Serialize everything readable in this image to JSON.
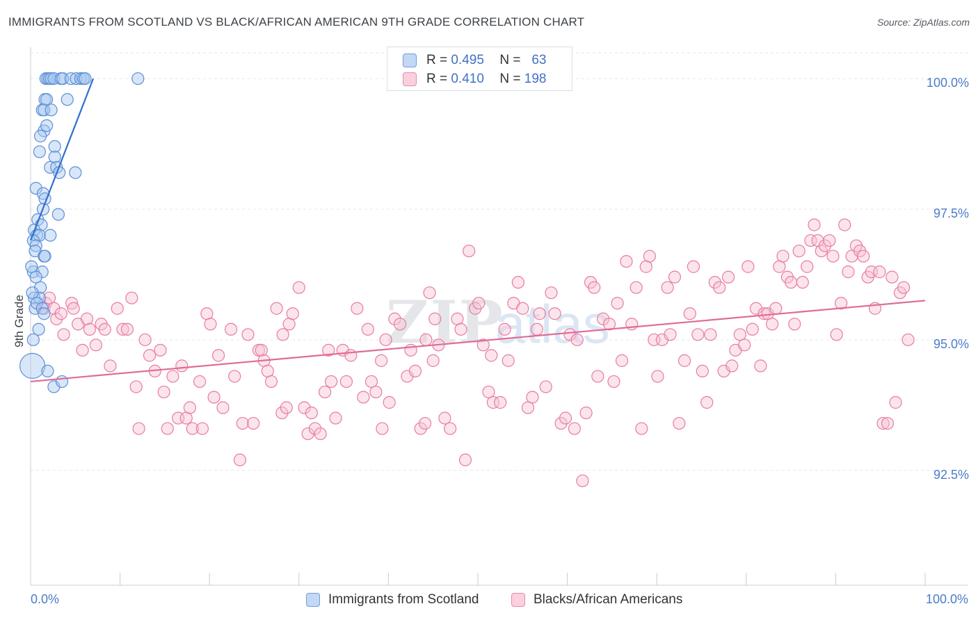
{
  "title": "IMMIGRANTS FROM SCOTLAND VS BLACK/AFRICAN AMERICAN 9TH GRADE CORRELATION CHART",
  "source": "Source: ZipAtlas.com",
  "colors": {
    "blue": "#5b8fd6",
    "blue_fill": "#a9c7ef",
    "pink": "#e77ca0",
    "pink_fill": "#f7c3d4",
    "blue_line": "#2e6fcf",
    "pink_line": "#e06b94",
    "tick_text": "#4a7cc9"
  },
  "legend_top": [
    {
      "r_label": "R =",
      "r_value": "0.495",
      "n_label": "N =",
      "n_value": "63"
    },
    {
      "r_label": "R =",
      "r_value": "0.410",
      "n_label": "N =",
      "n_value": "198"
    }
  ],
  "chart_data": {
    "type": "scatter",
    "title": "IMMIGRANTS FROM SCOTLAND VS BLACK/AFRICAN AMERICAN 9TH GRADE CORRELATION CHART",
    "xlabel": "",
    "ylabel": "9th Grade",
    "xlim": [
      0,
      100
    ],
    "ylim": [
      90.3,
      100.6
    ],
    "x_tick_labels": [
      "0.0%",
      "100.0%"
    ],
    "y_ticks": [
      92.5,
      95.0,
      97.5,
      100.0
    ],
    "y_tick_labels": [
      "92.5%",
      "95.0%",
      "97.5%",
      "100.0%"
    ],
    "grid": true,
    "legend_position": "bottom",
    "series": [
      {
        "name": "Immigrants from Scotland",
        "R": 0.495,
        "N": 63,
        "trend": [
          [
            0.0,
            96.9
          ],
          [
            7.0,
            100.0
          ]
        ],
        "points": [
          [
            1.7,
            100
          ],
          [
            1.9,
            100
          ],
          [
            2.1,
            100
          ],
          [
            2.3,
            100
          ],
          [
            2.6,
            100
          ],
          [
            3.4,
            100
          ],
          [
            3.6,
            100
          ],
          [
            4.5,
            100
          ],
          [
            5.1,
            100
          ],
          [
            5.6,
            100
          ],
          [
            5.9,
            100
          ],
          [
            6.1,
            100
          ],
          [
            12.0,
            100
          ],
          [
            1.6,
            99.6
          ],
          [
            1.8,
            99.6
          ],
          [
            4.1,
            99.6
          ],
          [
            1.3,
            99.4
          ],
          [
            1.5,
            99.4
          ],
          [
            2.3,
            99.4
          ],
          [
            1.5,
            99.0
          ],
          [
            1.8,
            99.1
          ],
          [
            1.1,
            98.9
          ],
          [
            1.0,
            98.6
          ],
          [
            2.7,
            98.7
          ],
          [
            2.7,
            98.5
          ],
          [
            2.2,
            98.3
          ],
          [
            2.9,
            98.3
          ],
          [
            3.2,
            98.2
          ],
          [
            5.0,
            98.2
          ],
          [
            0.6,
            97.9
          ],
          [
            1.4,
            97.8
          ],
          [
            1.6,
            97.7
          ],
          [
            1.4,
            97.5
          ],
          [
            3.1,
            97.4
          ],
          [
            0.8,
            97.3
          ],
          [
            1.2,
            97.2
          ],
          [
            0.4,
            97.1
          ],
          [
            0.7,
            97.0
          ],
          [
            1.0,
            97.0
          ],
          [
            2.2,
            97.0
          ],
          [
            0.3,
            96.9
          ],
          [
            0.6,
            96.8
          ],
          [
            0.5,
            96.7
          ],
          [
            1.5,
            96.6
          ],
          [
            1.6,
            96.6
          ],
          [
            0.3,
            96.3
          ],
          [
            1.3,
            96.3
          ],
          [
            0.6,
            96.2
          ],
          [
            1.1,
            96.0
          ],
          [
            0.4,
            95.8
          ],
          [
            1.0,
            95.8
          ],
          [
            0.5,
            95.6
          ],
          [
            0.7,
            95.7
          ],
          [
            1.3,
            95.6
          ],
          [
            1.5,
            95.5
          ],
          [
            0.2,
            94.5
          ],
          [
            1.9,
            94.4
          ],
          [
            2.6,
            94.1
          ],
          [
            3.5,
            94.2
          ],
          [
            0.3,
            95.0
          ],
          [
            0.9,
            95.2
          ],
          [
            0.1,
            96.4
          ],
          [
            0.2,
            95.9
          ]
        ]
      },
      {
        "name": "Blacks/African Americans",
        "R": 0.41,
        "N": 198,
        "trend": [
          [
            0.0,
            94.2
          ],
          [
            100.0,
            95.75
          ]
        ],
        "points": [
          [
            1.5,
            95.6
          ],
          [
            1.7,
            95.7
          ],
          [
            2.1,
            95.8
          ],
          [
            2.6,
            95.6
          ],
          [
            2.9,
            95.4
          ],
          [
            3.4,
            95.5
          ],
          [
            3.7,
            95.1
          ],
          [
            4.6,
            95.7
          ],
          [
            4.8,
            95.6
          ],
          [
            5.3,
            95.3
          ],
          [
            5.8,
            94.8
          ],
          [
            6.3,
            95.4
          ],
          [
            6.6,
            95.2
          ],
          [
            7.3,
            94.9
          ],
          [
            7.9,
            95.3
          ],
          [
            8.3,
            95.2
          ],
          [
            8.9,
            94.5
          ],
          [
            9.7,
            95.6
          ],
          [
            10.3,
            95.2
          ],
          [
            10.8,
            95.2
          ],
          [
            11.3,
            95.8
          ],
          [
            11.8,
            94.1
          ],
          [
            12.1,
            93.3
          ],
          [
            12.8,
            95.0
          ],
          [
            13.3,
            94.7
          ],
          [
            13.9,
            94.4
          ],
          [
            14.5,
            94.8
          ],
          [
            14.9,
            94.0
          ],
          [
            15.3,
            93.3
          ],
          [
            15.9,
            94.3
          ],
          [
            16.5,
            93.5
          ],
          [
            16.9,
            94.5
          ],
          [
            17.4,
            93.5
          ],
          [
            17.8,
            93.7
          ],
          [
            18.1,
            93.3
          ],
          [
            18.9,
            94.2
          ],
          [
            19.2,
            93.3
          ],
          [
            19.7,
            95.5
          ],
          [
            20.1,
            95.3
          ],
          [
            20.5,
            93.9
          ],
          [
            21.0,
            94.7
          ],
          [
            21.5,
            93.7
          ],
          [
            22.4,
            95.2
          ],
          [
            22.8,
            94.3
          ],
          [
            23.4,
            92.7
          ],
          [
            23.7,
            93.4
          ],
          [
            24.3,
            95.1
          ],
          [
            24.9,
            93.4
          ],
          [
            25.5,
            94.8
          ],
          [
            25.8,
            94.8
          ],
          [
            26.1,
            94.6
          ],
          [
            26.5,
            94.4
          ],
          [
            26.9,
            94.2
          ],
          [
            27.5,
            95.6
          ],
          [
            28.1,
            93.6
          ],
          [
            28.6,
            93.7
          ],
          [
            28.9,
            95.3
          ],
          [
            29.3,
            95.5
          ],
          [
            30.0,
            96.0
          ],
          [
            30.6,
            93.7
          ],
          [
            31.0,
            93.2
          ],
          [
            31.4,
            93.6
          ],
          [
            31.8,
            93.3
          ],
          [
            32.4,
            93.2
          ],
          [
            32.9,
            94.0
          ],
          [
            33.3,
            94.8
          ],
          [
            33.6,
            94.2
          ],
          [
            34.1,
            93.5
          ],
          [
            34.9,
            94.8
          ],
          [
            35.3,
            94.2
          ],
          [
            35.8,
            94.7
          ],
          [
            36.5,
            95.6
          ],
          [
            37.2,
            93.9
          ],
          [
            37.7,
            95.2
          ],
          [
            38.1,
            94.2
          ],
          [
            38.6,
            94.0
          ],
          [
            39.2,
            94.6
          ],
          [
            39.7,
            95.0
          ],
          [
            40.1,
            93.8
          ],
          [
            40.7,
            95.4
          ],
          [
            41.3,
            95.3
          ],
          [
            42.1,
            94.3
          ],
          [
            42.5,
            94.8
          ],
          [
            43.0,
            94.4
          ],
          [
            43.6,
            93.3
          ],
          [
            44.1,
            93.4
          ],
          [
            44.6,
            95.9
          ],
          [
            45.2,
            95.4
          ],
          [
            45.6,
            94.9
          ],
          [
            46.3,
            93.5
          ],
          [
            46.9,
            93.3
          ],
          [
            47.7,
            95.4
          ],
          [
            48.1,
            95.2
          ],
          [
            48.6,
            92.7
          ],
          [
            49.0,
            96.7
          ],
          [
            49.7,
            95.6
          ],
          [
            50.1,
            95.7
          ],
          [
            50.6,
            94.9
          ],
          [
            51.2,
            94.0
          ],
          [
            51.7,
            93.8
          ],
          [
            52.5,
            93.8
          ],
          [
            53.0,
            95.2
          ],
          [
            53.4,
            94.6
          ],
          [
            54.0,
            95.7
          ],
          [
            54.5,
            96.1
          ],
          [
            55.0,
            95.6
          ],
          [
            55.6,
            93.7
          ],
          [
            56.1,
            93.9
          ],
          [
            56.6,
            95.2
          ],
          [
            56.9,
            95.5
          ],
          [
            57.6,
            94.1
          ],
          [
            58.2,
            95.9
          ],
          [
            58.6,
            95.5
          ],
          [
            59.3,
            93.4
          ],
          [
            59.8,
            93.5
          ],
          [
            60.3,
            95.1
          ],
          [
            60.8,
            93.3
          ],
          [
            61.1,
            95.0
          ],
          [
            61.7,
            92.3
          ],
          [
            62.1,
            93.6
          ],
          [
            62.6,
            96.1
          ],
          [
            63.0,
            96.0
          ],
          [
            63.4,
            94.3
          ],
          [
            64.0,
            95.4
          ],
          [
            64.7,
            95.3
          ],
          [
            65.2,
            94.2
          ],
          [
            65.6,
            95.7
          ],
          [
            66.1,
            94.6
          ],
          [
            66.6,
            96.5
          ],
          [
            67.2,
            95.3
          ],
          [
            67.7,
            96.0
          ],
          [
            68.3,
            93.3
          ],
          [
            68.8,
            96.4
          ],
          [
            69.2,
            96.6
          ],
          [
            69.7,
            95.0
          ],
          [
            70.1,
            94.3
          ],
          [
            70.6,
            95.0
          ],
          [
            71.2,
            96.0
          ],
          [
            71.5,
            95.1
          ],
          [
            72.0,
            96.2
          ],
          [
            72.5,
            93.4
          ],
          [
            73.1,
            94.6
          ],
          [
            73.7,
            95.5
          ],
          [
            74.1,
            96.4
          ],
          [
            74.6,
            95.1
          ],
          [
            75.1,
            94.4
          ],
          [
            75.6,
            93.8
          ],
          [
            76.0,
            95.1
          ],
          [
            76.5,
            96.1
          ],
          [
            77.0,
            96.0
          ],
          [
            77.5,
            94.4
          ],
          [
            78.0,
            96.2
          ],
          [
            78.4,
            94.5
          ],
          [
            78.8,
            94.8
          ],
          [
            79.3,
            95.1
          ],
          [
            79.8,
            94.9
          ],
          [
            80.2,
            96.4
          ],
          [
            80.7,
            95.2
          ],
          [
            81.1,
            95.6
          ],
          [
            81.6,
            94.5
          ],
          [
            82.0,
            95.5
          ],
          [
            82.4,
            95.5
          ],
          [
            82.9,
            95.3
          ],
          [
            83.3,
            95.6
          ],
          [
            83.7,
            96.4
          ],
          [
            84.1,
            96.6
          ],
          [
            84.6,
            96.2
          ],
          [
            85.0,
            96.1
          ],
          [
            85.4,
            95.3
          ],
          [
            85.9,
            96.7
          ],
          [
            86.3,
            96.1
          ],
          [
            86.8,
            96.4
          ],
          [
            87.2,
            96.9
          ],
          [
            87.6,
            97.2
          ],
          [
            88.0,
            96.9
          ],
          [
            88.4,
            96.7
          ],
          [
            88.8,
            96.8
          ],
          [
            89.3,
            96.9
          ],
          [
            89.7,
            96.6
          ],
          [
            90.1,
            95.1
          ],
          [
            90.6,
            95.7
          ],
          [
            91.0,
            97.2
          ],
          [
            91.4,
            96.3
          ],
          [
            91.8,
            96.6
          ],
          [
            92.3,
            96.8
          ],
          [
            92.7,
            96.7
          ],
          [
            93.1,
            96.6
          ],
          [
            93.6,
            96.2
          ],
          [
            94.0,
            96.3
          ],
          [
            94.4,
            95.6
          ],
          [
            94.9,
            96.3
          ],
          [
            95.3,
            93.4
          ],
          [
            95.8,
            93.4
          ],
          [
            96.3,
            96.2
          ],
          [
            96.7,
            93.8
          ],
          [
            97.2,
            95.9
          ],
          [
            97.6,
            96.0
          ],
          [
            98.1,
            95.0
          ],
          [
            39.3,
            93.3
          ],
          [
            51.5,
            94.7
          ],
          [
            44.2,
            95.0
          ],
          [
            28.2,
            95.1
          ],
          [
            45.0,
            94.6
          ]
        ]
      }
    ]
  }
}
